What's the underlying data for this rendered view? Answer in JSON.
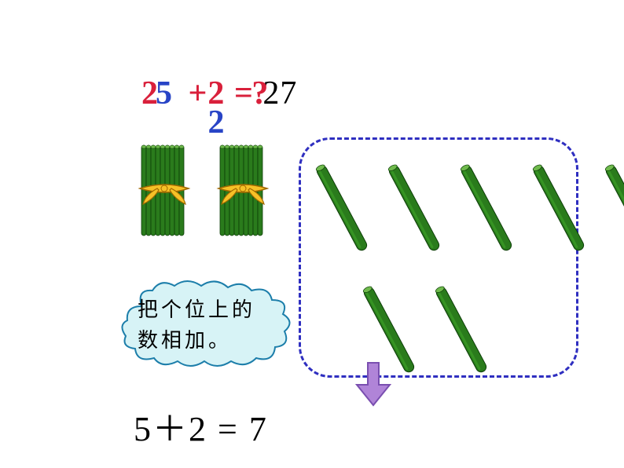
{
  "equation_top": {
    "part1_base": "2",
    "part1_overlay": "5",
    "plus": " +2",
    "part2_overlay": "2",
    "equals": "= ",
    "question": "?",
    "answer": "27",
    "color_red": "#d9203b",
    "color_blue": "#2844c6",
    "fontsize": 42
  },
  "bundles": {
    "count": 2,
    "stick_color": "#2a7b1c",
    "stick_highlight": "#3fa528",
    "tie_color": "#f6c127",
    "tie_outline": "#a06800"
  },
  "dashed_box": {
    "border_color": "#2f2fc0",
    "border_width": 3,
    "radius": 40
  },
  "loose_sticks": {
    "top_count": 5,
    "bottom_count": 2,
    "fill": "#2a7b1c",
    "highlight": "#3fa528",
    "end_cap": "#6fba4c",
    "length": 120,
    "width": 13,
    "angle": -60
  },
  "arrow": {
    "fill": "#b084d8",
    "stroke": "#7a4fb0"
  },
  "cloud": {
    "fill": "#d7f3f6",
    "stroke": "#1c7eaa",
    "text_line1": "把个位上的",
    "text_line2": "数相加。",
    "text_color": "#000000",
    "fontsize": 26
  },
  "equation_bottom": {
    "text": "5＋2 = 7",
    "color": "#000000",
    "fontsize": 44
  }
}
